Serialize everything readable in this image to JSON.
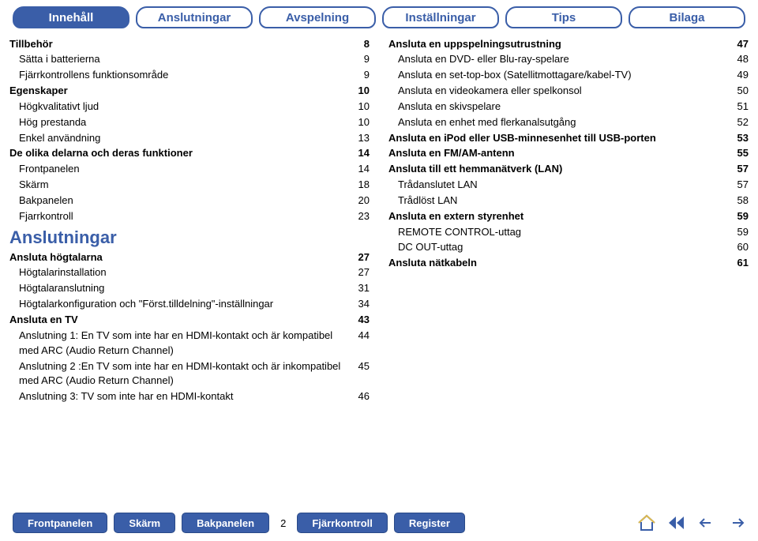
{
  "colors": {
    "primary": "#3a5ea8",
    "text": "#000000",
    "bg": "#ffffff"
  },
  "tabs": [
    {
      "label": "Innehåll",
      "active": true
    },
    {
      "label": "Anslutningar",
      "active": false
    },
    {
      "label": "Avspelning",
      "active": false
    },
    {
      "label": "Inställningar",
      "active": false
    },
    {
      "label": "Tips",
      "active": false
    },
    {
      "label": "Bilaga",
      "active": false
    }
  ],
  "left_section_title": "Anslutningar",
  "left_col": [
    {
      "label": "Tillbehör",
      "page": "8",
      "level": 0
    },
    {
      "label": "Sätta i batterierna",
      "page": "9",
      "level": 1
    },
    {
      "label": "Fjärrkontrollens funktionsområde",
      "page": "9",
      "level": 1
    },
    {
      "label": "Egenskaper",
      "page": "10",
      "level": 0
    },
    {
      "label": "Högkvalitativt ljud",
      "page": "10",
      "level": 1
    },
    {
      "label": "Hög prestanda",
      "page": "10",
      "level": 1
    },
    {
      "label": "Enkel användning",
      "page": "13",
      "level": 1
    },
    {
      "label": "De olika delarna och deras funktioner",
      "page": "14",
      "level": 0
    },
    {
      "label": "Frontpanelen",
      "page": "14",
      "level": 1
    },
    {
      "label": "Skärm",
      "page": "18",
      "level": 1
    },
    {
      "label": "Bakpanelen",
      "page": "20",
      "level": 1
    },
    {
      "label": "Fjarrkontroll",
      "page": "23",
      "level": 1
    },
    {
      "is_section_title": true
    },
    {
      "label": "Ansluta högtalarna",
      "page": "27",
      "level": 0
    },
    {
      "label": "Högtalarinstallation",
      "page": "27",
      "level": 1
    },
    {
      "label": "Högtalaranslutning",
      "page": "31",
      "level": 1
    },
    {
      "label": "Högtalarkonfiguration och \"Först.tilldelning\"-inställningar",
      "page": "34",
      "level": 1
    },
    {
      "label": "Ansluta en TV",
      "page": "43",
      "level": 0
    },
    {
      "label": "Anslutning 1: En TV som inte har en HDMI-kontakt och är kompatibel med ARC (Audio Return Channel)",
      "page": "44",
      "level": 1
    },
    {
      "label": "Anslutning 2 :En TV som inte har en HDMI-kontakt och är inkompatibel med ARC (Audio Return Channel)",
      "page": "45",
      "level": 1
    },
    {
      "label": "Anslutning 3: TV som inte har en HDMI-kontakt",
      "page": "46",
      "level": 1
    }
  ],
  "right_col": [
    {
      "label": "Ansluta en uppspelningsutrustning",
      "page": "47",
      "level": 0
    },
    {
      "label": "Ansluta en DVD- eller Blu-ray-spelare",
      "page": "48",
      "level": 1
    },
    {
      "label": "Ansluta en set-top-box (Satellitmottagare/kabel-TV)",
      "page": "49",
      "level": 1
    },
    {
      "label": "Ansluta en videokamera eller spelkonsol",
      "page": "50",
      "level": 1
    },
    {
      "label": "Ansluta en skivspelare",
      "page": "51",
      "level": 1
    },
    {
      "label": "Ansluta en enhet med flerkanalsutgång",
      "page": "52",
      "level": 1
    },
    {
      "label": "Ansluta en iPod eller USB-minnesenhet till USB-porten",
      "page": "53",
      "level": 0
    },
    {
      "label": "Ansluta en FM/AM-antenn",
      "page": "55",
      "level": 0
    },
    {
      "label": "Ansluta till ett hemmanätverk (LAN)",
      "page": "57",
      "level": 0
    },
    {
      "label": "Trådanslutet LAN",
      "page": "57",
      "level": 1
    },
    {
      "label": "Trådlöst LAN",
      "page": "58",
      "level": 1
    },
    {
      "label": "Ansluta en extern styrenhet",
      "page": "59",
      "level": 0
    },
    {
      "label": "REMOTE CONTROL-uttag",
      "page": "59",
      "level": 1
    },
    {
      "label": "DC OUT-uttag",
      "page": "60",
      "level": 1
    },
    {
      "label": "Ansluta nätkabeln",
      "page": "61",
      "level": 0
    }
  ],
  "bottom_buttons_left": [
    {
      "label": "Frontpanelen"
    },
    {
      "label": "Skärm"
    },
    {
      "label": "Bakpanelen"
    }
  ],
  "bottom_buttons_right": [
    {
      "label": "Fjärrkontroll"
    },
    {
      "label": "Register"
    }
  ],
  "page_number": "2"
}
